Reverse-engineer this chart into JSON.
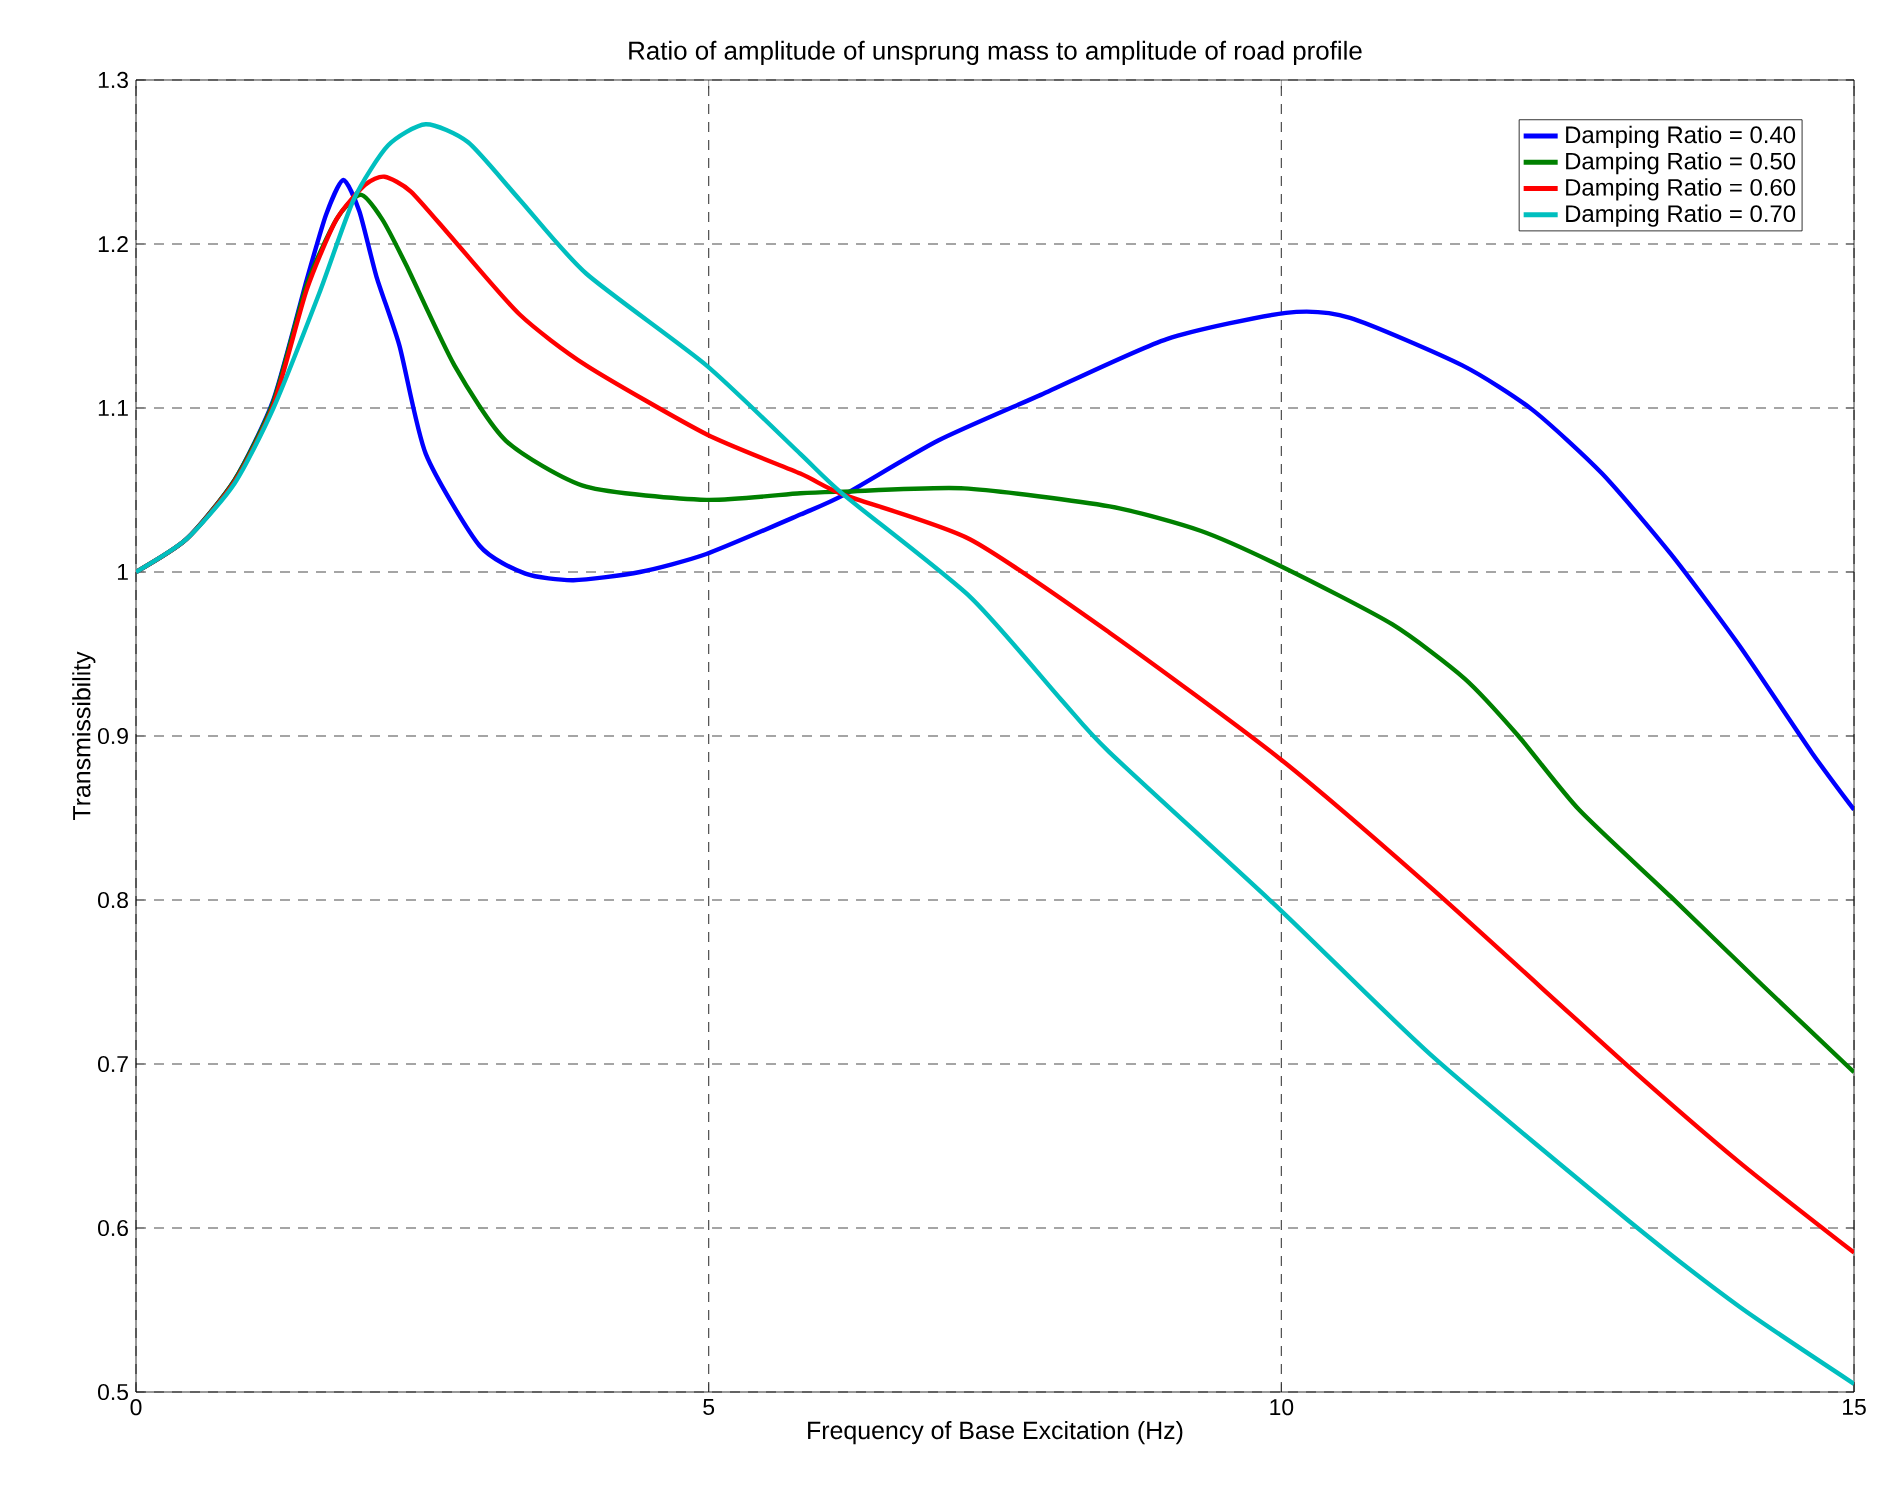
{
  "chart_data": {
    "type": "line",
    "title": "Ratio of amplitude of unsprung mass to amplitude of road profile",
    "xlabel": "Frequency of Base Excitation (Hz)",
    "ylabel": "Transmissibility",
    "xlim": [
      0,
      15
    ],
    "ylim": [
      0.5,
      1.3
    ],
    "xticks": [
      0,
      5,
      10,
      15
    ],
    "yticks": [
      0.5,
      0.6,
      0.7,
      0.8,
      0.9,
      1,
      1.1,
      1.2,
      1.3
    ],
    "grid": true,
    "legend": "top right",
    "line_style": "solid",
    "marker": "none",
    "series": [
      {
        "name": "Damping Ratio = 0.40",
        "color": "#0000ff",
        "x": [
          0,
          0.44,
          0.86,
          1.2,
          1.49,
          1.66,
          1.81,
          1.95,
          2.1,
          2.3,
          2.53,
          3.0,
          3.4,
          3.82,
          4.4,
          4.98,
          5.8,
          6.18,
          7.0,
          7.9,
          9,
          10.04,
          10.6,
          11.58,
          12.19,
          12.8,
          13.4,
          14.0,
          14.63,
          15
        ],
        "values": [
          1,
          1.02,
          1.056,
          1.105,
          1.178,
          1.218,
          1.239,
          1.22,
          1.18,
          1.138,
          1.072,
          1.016,
          0.999,
          0.995,
          1.0,
          1.011,
          1.035,
          1.047,
          1.08,
          1.108,
          1.142,
          1.158,
          1.155,
          1.126,
          1.099,
          1.06,
          1.011,
          0.955,
          0.89,
          0.855
        ]
      },
      {
        "name": "Damping Ratio = 0.50",
        "color": "#008000",
        "x": [
          0,
          0.44,
          0.86,
          1.2,
          1.49,
          1.75,
          1.96,
          2.15,
          2.36,
          2.78,
          3.23,
          3.93,
          4.98,
          5.8,
          6.18,
          7.23,
          8.5,
          9.3,
          10.04,
          10.97,
          11.6,
          12.07,
          12.6,
          13.4,
          14.2,
          15
        ],
        "values": [
          1,
          1.02,
          1.056,
          1.104,
          1.175,
          1.215,
          1.23,
          1.215,
          1.187,
          1.126,
          1.08,
          1.052,
          1.044,
          1.048,
          1.049,
          1.051,
          1.04,
          1.025,
          1.002,
          0.968,
          0.935,
          0.9,
          0.855,
          0.802,
          0.748,
          0.695
        ]
      },
      {
        "name": "Damping Ratio = 0.60",
        "color": "#ff0000",
        "x": [
          0,
          0.44,
          0.86,
          1.2,
          1.49,
          1.75,
          2.0,
          2.17,
          2.4,
          2.78,
          3.35,
          3.93,
          4.98,
          5.8,
          6.18,
          7.28,
          8.5,
          9.99,
          11.33,
          12.99,
          14.0,
          15
        ],
        "values": [
          1,
          1.02,
          1.055,
          1.102,
          1.172,
          1.215,
          1.236,
          1.241,
          1.232,
          1.202,
          1.157,
          1.126,
          1.084,
          1.06,
          1.047,
          1.02,
          0.963,
          0.886,
          0.806,
          0.701,
          0.64,
          0.585
        ]
      },
      {
        "name": "Damping Ratio = 0.70",
        "color": "#00bfbf",
        "x": [
          0,
          0.44,
          0.86,
          1.2,
          1.6,
          1.9,
          2.2,
          2.53,
          2.9,
          3.35,
          3.93,
          4.98,
          5.8,
          6.18,
          7.28,
          8.08,
          8.5,
          9.99,
          11.33,
          13.04,
          14.0,
          15
        ],
        "values": [
          1,
          1.02,
          1.054,
          1.1,
          1.17,
          1.227,
          1.26,
          1.273,
          1.262,
          1.227,
          1.182,
          1.126,
          1.072,
          1.047,
          0.985,
          0.922,
          0.89,
          0.794,
          0.704,
          0.604,
          0.552,
          0.505
        ]
      }
    ]
  }
}
